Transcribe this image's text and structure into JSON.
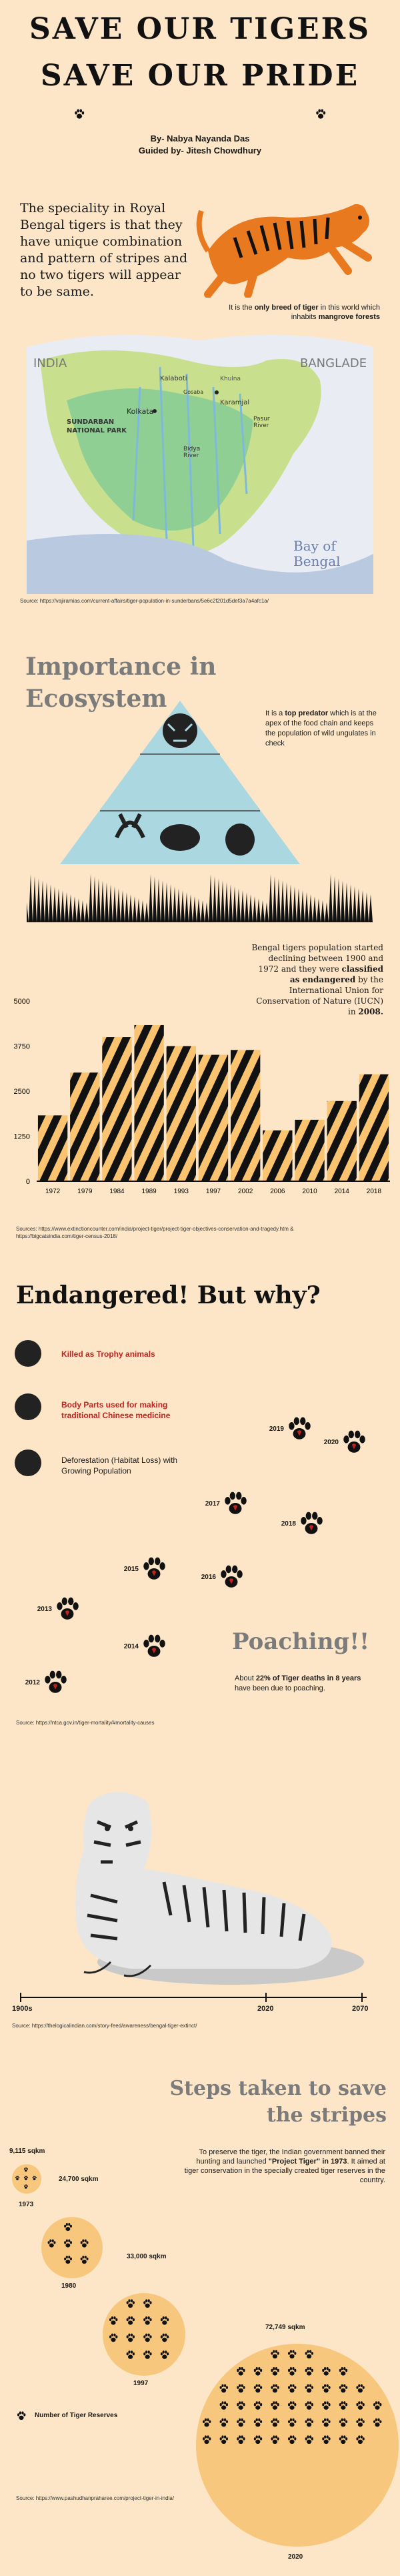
{
  "header": {
    "title_line1": "SAVE OUR TIGERS",
    "title_line2": "SAVE OUR PRIDE",
    "author": "By- Nabya Nayanda Das",
    "guide": "Guided by- Jitesh Chowdhury"
  },
  "intro": {
    "speciality": "The speciality in Royal Bengal tigers is that they have unique combination and pattern of stripes and no two tigers will appear to be same.",
    "breed_text_a": "It is the ",
    "breed_text_b": "only breed of tiger",
    "breed_text_c": " in this world which inhabits ",
    "breed_text_d": "mangrove forests",
    "source": "Source: https://vajiramias.com/current-affairs/tiger-population-in-sunderbans/5e6c2f201d5def3a7a4afc1a/"
  },
  "map": {
    "india": "INDIA",
    "bangladesh": "BANGLADE",
    "sundarban": "SUNDARBAN\nNATIONAL PARK",
    "kolkata": "Kolkata",
    "kalaboti": "Kalaboti",
    "khulna": "Khulna",
    "karamjal": "Karamjal",
    "gosaba": "Gosaba",
    "bidya_river": "Bidya\nRiver",
    "sundar_river": "Sundari\nRiver",
    "raimangal": "Raimangal\nRiver",
    "pasur": "Pasur\nRiver",
    "bay": "Bay of\nBengal"
  },
  "ecosystem": {
    "heading": "Importance in Ecosystem",
    "text_a": "It is a ",
    "text_b": "top predator",
    "text_c": " which is at the apex of the food chain and keeps the population of wild ungulates in check"
  },
  "population": {
    "text_a": "Bengal tigers population started declining between 1900 and 1972 and they were ",
    "text_b": "classified as endangered",
    "text_c": " by the International Union for Conservation of Nature (IUCN) in ",
    "text_d": "2008.",
    "source": "Sources: https://www.extinctioncounter.com/india/project-tiger/project-tiger-objectives-conservation-and-tragedy.htm & https://bigcatsindia.com/tiger-census-2018/"
  },
  "chart_data": {
    "type": "bar",
    "categories": [
      "1972",
      "1979",
      "1984",
      "1989",
      "1993",
      "1997",
      "2002",
      "2006",
      "2010",
      "2014",
      "2018"
    ],
    "values": [
      1827,
      3015,
      3999,
      4334,
      3750,
      3508,
      3642,
      1411,
      1706,
      2226,
      2967
    ],
    "yticks": [
      "0",
      "1250",
      "2500",
      "3750",
      "5000"
    ],
    "ylim": [
      0,
      5000
    ]
  },
  "endangered": {
    "heading": "Endangered! But why?",
    "reason1": "Killed as Trophy animals",
    "reason2": "Body Parts used for making traditional Chinese medicine",
    "reason3": "Deforestation (Habitat Loss) with Growing Population",
    "years": [
      "2019",
      "2020",
      "2017",
      "2018",
      "2015",
      "2016",
      "2013",
      "2014",
      "2012"
    ],
    "poaching": "Poaching!!",
    "poaching_text_a": "About ",
    "poaching_text_b": "22% of Tiger deaths in 8 years",
    "poaching_text_c": " have been due to poaching.",
    "source": "Source: https://ntca.gov.in/tiger-mortality/#mortality-causes"
  },
  "timeline": {
    "start": "1900s",
    "mid": "2020",
    "end": "2070",
    "source": "Source: https://thelogicalindian.com/story-feed/awareness/bengal-tiger-extinct/"
  },
  "steps": {
    "heading_line1": "Steps taken to save",
    "heading_line2": "the stripes",
    "text_a": "To preserve the tiger, the Indian government banned their hunting and launched ",
    "text_b": "\"Project Tiger\" in 1973",
    "text_c": ". It aimed at tiger conservation in the specially created tiger reserves in the country.",
    "legend": "Number of Tiger Reserves",
    "source": "Source: https://www.pashudhanpraharee.com/project-tiger-in-india/",
    "reserves": [
      {
        "area": "9,115 sqkm",
        "year": "1973",
        "count": 9
      },
      {
        "area": "24,700 sqkm",
        "year": "1980",
        "count": 11
      },
      {
        "area": "33,000 sqkm",
        "year": "1997",
        "count": 23
      },
      {
        "area": "72,749 sqkm",
        "year": "2020",
        "count": 50
      }
    ]
  },
  "colors": {
    "background": "#fde6c7",
    "accent_red": "#c0231f",
    "stripe_orange": "#f9c36f"
  }
}
